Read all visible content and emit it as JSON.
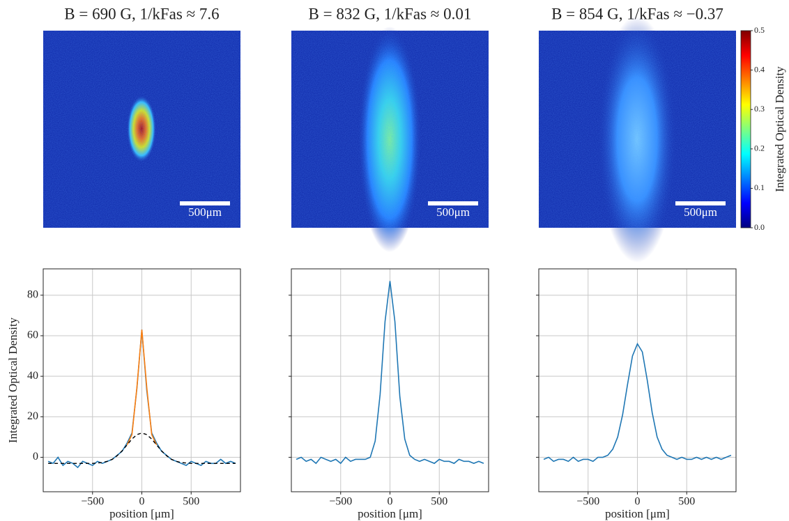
{
  "chart_data": [
    {
      "type": "image",
      "title": "B = 690 G, 1/kFas ≈ 7.6",
      "scalebar_label": "500μm"
    },
    {
      "type": "image",
      "title": "B = 832 G, 1/kFas ≈ 0.01",
      "scalebar_label": "500μm"
    },
    {
      "type": "image",
      "title": "B = 854 G, 1/kFas ≈ −0.37",
      "scalebar_label": "500μm"
    },
    {
      "type": "colorbar",
      "label": "Integrated Optical Density",
      "ylim": [
        0,
        0.5
      ],
      "yticks": [
        {
          "value": 0,
          "label": "0.0"
        },
        0.1,
        0.2,
        0.3,
        0.4,
        0.5
      ]
    },
    {
      "type": "line",
      "xlabel": "position [μm]",
      "ylabel": "Integrated Optical Density",
      "grid": true,
      "show_ytick_labels": true,
      "xlim": [
        -1000,
        1000
      ],
      "xticks": [
        {
          "value": -500,
          "label": "−500"
        },
        0,
        500
      ],
      "ylim": [
        -17,
        93
      ],
      "yticks": [
        0,
        20,
        40,
        60,
        80
      ],
      "x": [
        -950,
        -900,
        -850,
        -800,
        -750,
        -700,
        -650,
        -600,
        -550,
        -500,
        -450,
        -400,
        -350,
        -300,
        -250,
        -200,
        -150,
        -100,
        -50,
        0,
        50,
        100,
        150,
        200,
        250,
        300,
        350,
        400,
        450,
        500,
        550,
        600,
        650,
        700,
        750,
        800,
        850,
        900,
        950
      ],
      "series": [
        {
          "color": "#1f77b4",
          "dash": false,
          "values": [
            -2,
            -3,
            0,
            -4,
            -2,
            -3,
            -5,
            -2,
            -3,
            -4,
            -2,
            -3,
            -2,
            -1,
            1,
            3,
            7,
            12,
            34,
            63,
            33,
            12,
            7,
            3,
            1,
            -1,
            -2,
            -3,
            -4,
            -2,
            -3,
            -4,
            -2,
            -3,
            -3,
            -1,
            -3,
            -2,
            -3
          ]
        },
        {
          "color": "#ff7f0e",
          "dash": false,
          "values": [
            null,
            null,
            null,
            null,
            null,
            null,
            null,
            null,
            null,
            null,
            null,
            null,
            null,
            null,
            null,
            null,
            6.1,
            11.2,
            34.5,
            63,
            34.5,
            11.2,
            6.1,
            null,
            null,
            null,
            null,
            null,
            null,
            null,
            null,
            null,
            null,
            null,
            null,
            null,
            null,
            null,
            null
          ]
        },
        {
          "color": "#000000",
          "dash": true,
          "values": [
            -3,
            -3,
            -3,
            -3,
            -3,
            -3,
            -3,
            -3,
            -3,
            -3,
            -2.8,
            -2.6,
            -2,
            -1,
            0.8,
            3.2,
            6.1,
            9,
            11.2,
            12,
            11.2,
            9,
            6.1,
            3.2,
            0.8,
            -1,
            -2,
            -2.6,
            -2.8,
            -3,
            -3,
            -3,
            -3,
            -3,
            -3,
            -3,
            -3,
            -3,
            -3
          ]
        }
      ]
    },
    {
      "type": "line",
      "xlabel": "position [μm]",
      "grid": true,
      "show_ytick_labels": false,
      "xlim": [
        -1000,
        1000
      ],
      "xticks": [
        {
          "value": -500,
          "label": "−500"
        },
        0,
        500
      ],
      "ylim": [
        -17,
        93
      ],
      "yticks": [
        0,
        20,
        40,
        60,
        80
      ],
      "x": [
        -950,
        -900,
        -850,
        -800,
        -750,
        -700,
        -650,
        -600,
        -550,
        -500,
        -450,
        -400,
        -350,
        -300,
        -250,
        -200,
        -150,
        -100,
        -50,
        0,
        50,
        100,
        150,
        200,
        250,
        300,
        350,
        400,
        450,
        500,
        550,
        600,
        650,
        700,
        750,
        800,
        850,
        900,
        950
      ],
      "series": [
        {
          "color": "#1f77b4",
          "dash": false,
          "values": [
            -1,
            0,
            -2,
            -1,
            -3,
            0,
            -1,
            -2,
            -1,
            -3,
            0,
            -2,
            -1,
            -1,
            -1,
            0,
            8,
            31,
            67,
            87,
            67,
            30,
            9,
            1,
            -1,
            -2,
            -1,
            -2,
            -3,
            -1,
            -2,
            -2,
            -3,
            -1,
            -2,
            -2,
            -3,
            -2,
            -3
          ]
        }
      ]
    },
    {
      "type": "line",
      "xlabel": "position [μm]",
      "grid": true,
      "show_ytick_labels": false,
      "xlim": [
        -1000,
        1000
      ],
      "xticks": [
        {
          "value": -500,
          "label": "−500"
        },
        0,
        500
      ],
      "ylim": [
        -17,
        93
      ],
      "yticks": [
        0,
        20,
        40,
        60,
        80
      ],
      "x": [
        -950,
        -900,
        -850,
        -800,
        -750,
        -700,
        -650,
        -600,
        -550,
        -500,
        -450,
        -400,
        -350,
        -300,
        -250,
        -200,
        -150,
        -100,
        -50,
        0,
        50,
        100,
        150,
        200,
        250,
        300,
        350,
        400,
        450,
        500,
        550,
        600,
        650,
        700,
        750,
        800,
        850,
        900,
        950
      ],
      "series": [
        {
          "color": "#1f77b4",
          "dash": false,
          "values": [
            -1,
            0,
            -2,
            -1,
            -1,
            -2,
            0,
            -2,
            -1,
            -1,
            -2,
            0,
            0,
            1,
            4,
            10,
            21,
            36,
            50,
            56,
            52,
            38,
            22,
            10,
            4,
            1,
            0,
            -1,
            0,
            -1,
            -1,
            0,
            -1,
            0,
            -1,
            0,
            -1,
            0,
            1
          ]
        }
      ]
    }
  ]
}
